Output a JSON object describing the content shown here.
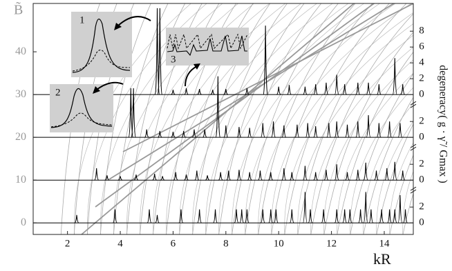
{
  "chart_data": {
    "type": "spike",
    "ylabel": "B̃",
    "xlabel": "kR",
    "y2label": "degeneracy( g · γ̃ / Gmax )",
    "xlim": [
      0.7,
      15.1
    ],
    "xticks": [
      2,
      4,
      6,
      8,
      10,
      12,
      14
    ],
    "ylim": [
      -2.7,
      51.3
    ],
    "yticks": [
      0,
      10,
      20,
      30,
      40
    ],
    "y2lim": [
      -1.46,
      27.7
    ],
    "color": "#000000",
    "panels": [
      {
        "offset": 0,
        "y2ticks": [
          0,
          2
        ],
        "x": [
          2.35,
          3.8,
          5.1,
          5.4,
          6.3,
          7.0,
          7.6,
          8.4,
          8.6,
          8.8,
          9.4,
          9.7,
          9.9,
          10.5,
          11.0,
          11.2,
          11.7,
          12.2,
          12.5,
          12.7,
          13.1,
          13.3,
          13.5,
          13.9,
          14.2,
          14.4,
          14.6,
          14.8
        ],
        "values": [
          1.0,
          1.7,
          1.7,
          1.0,
          1.7,
          1.7,
          1.7,
          1.7,
          1.7,
          1.7,
          1.7,
          1.7,
          1.7,
          1.7,
          3.9,
          1.7,
          1.7,
          1.7,
          1.7,
          1.7,
          1.7,
          3.9,
          1.7,
          1.7,
          1.7,
          1.7,
          3.5,
          1.7
        ]
      },
      {
        "offset": 10,
        "y2ticks": [
          0,
          2
        ],
        "x": [
          3.1,
          3.5,
          4.0,
          4.6,
          5.3,
          5.6,
          6.1,
          6.5,
          6.9,
          7.3,
          7.8,
          8.1,
          8.5,
          8.9,
          9.3,
          9.7,
          10.2,
          10.5,
          11.0,
          11.4,
          11.8,
          12.2,
          12.6,
          13.0,
          13.3,
          13.7,
          14.1,
          14.4,
          14.7
        ],
        "values": [
          1.5,
          0.6,
          0.5,
          0.7,
          0.8,
          0.5,
          1.0,
          0.7,
          1.2,
          0.6,
          1.0,
          1.2,
          1.3,
          1.0,
          1.2,
          1.0,
          1.5,
          1.0,
          1.8,
          1.0,
          1.3,
          2.0,
          1.0,
          1.3,
          2.2,
          1.2,
          1.5,
          2.3,
          1.2
        ]
      },
      {
        "offset": 20,
        "y2ticks": [
          0,
          2
        ],
        "x": [
          4.4,
          4.5,
          5.0,
          5.5,
          6.0,
          6.4,
          6.8,
          7.2,
          7.7,
          8.0,
          8.5,
          8.9,
          9.4,
          9.8,
          10.2,
          10.7,
          11.1,
          11.4,
          11.9,
          12.2,
          12.6,
          13.0,
          13.4,
          13.8,
          14.2,
          14.6
        ],
        "values": [
          6.2,
          6.2,
          1.0,
          0.8,
          0.7,
          0.8,
          1.0,
          1.0,
          7.7,
          1.5,
          1.3,
          1.2,
          1.8,
          2.0,
          1.5,
          1.6,
          1.8,
          1.4,
          1.8,
          2.0,
          1.6,
          2.0,
          2.8,
          1.8,
          2.0,
          1.8
        ]
      },
      {
        "offset": 30,
        "y2ticks": [
          0,
          2,
          4,
          6,
          8
        ],
        "x": [
          5.4,
          5.5,
          6.0,
          6.5,
          7.0,
          7.5,
          8.0,
          8.8,
          9.5,
          10.0,
          10.4,
          11.0,
          11.4,
          11.8,
          12.2,
          12.5,
          13.0,
          13.4,
          13.8,
          14.4,
          14.7
        ],
        "values": [
          10.9,
          10.9,
          0.6,
          0.8,
          0.7,
          0.6,
          0.7,
          0.8,
          8.7,
          1.0,
          1.2,
          1.0,
          1.3,
          1.5,
          2.5,
          1.3,
          1.5,
          1.5,
          1.3,
          4.6,
          1.3
        ]
      }
    ],
    "insets": [
      {
        "label": "1"
      },
      {
        "label": "2"
      },
      {
        "label": "3"
      }
    ]
  }
}
